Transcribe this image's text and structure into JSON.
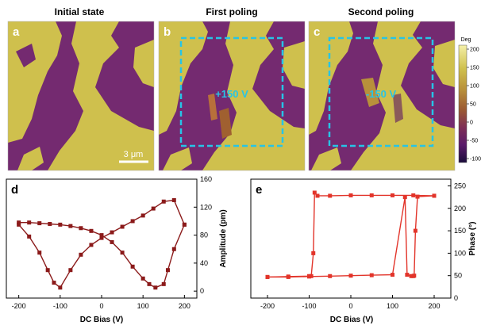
{
  "figure": {
    "panels_top": [
      {
        "letter": "a",
        "title": "Initial state"
      },
      {
        "letter": "b",
        "title": "First poling",
        "box_label": "+150 V"
      },
      {
        "letter": "c",
        "title": "Second poling",
        "box_label": "-150 V"
      }
    ],
    "scale_bar_label": "3 μm",
    "colorbar": {
      "title": "Deg",
      "ticks": [
        "200",
        "150",
        "100",
        "50",
        "0",
        "-50",
        "-100"
      ],
      "stops": [
        "#f4f0a8",
        "#cfc04d",
        "#b8903b",
        "#9b5a33",
        "#7e2f55",
        "#5a1a6a",
        "#1a0c3a"
      ]
    },
    "colors": {
      "yellow_domain": "#cfc04d",
      "purple_domain": "#742a70",
      "poling_box": "#27c4e6",
      "curve_d": "#8b1a1a",
      "curve_e": "#e2342a"
    },
    "panel_d": {
      "letter": "d"
    },
    "panel_e": {
      "letter": "e"
    }
  },
  "chart_data": [
    {
      "type": "line",
      "panel": "d",
      "xlabel": "DC Bias (V)",
      "ylabel": "Amplitude (pm)",
      "xlim": [
        -230,
        230
      ],
      "ylim": [
        -10,
        160
      ],
      "x_ticks": [
        -200,
        -100,
        0,
        100,
        200
      ],
      "y_ticks": [
        0,
        40,
        80,
        120,
        160
      ],
      "grid": false,
      "series": [
        {
          "x": [
            200,
            175,
            150,
            125,
            100,
            75,
            50,
            25,
            0,
            -25,
            -50,
            -75,
            -100,
            -115,
            -130,
            -150,
            -175,
            -200
          ],
          "y": [
            95,
            130,
            128,
            118,
            108,
            100,
            92,
            84,
            76,
            66,
            52,
            30,
            5,
            12,
            30,
            55,
            78,
            95
          ]
        },
        {
          "x": [
            -200,
            -175,
            -150,
            -125,
            -100,
            -75,
            -50,
            -25,
            0,
            25,
            50,
            75,
            100,
            115,
            130,
            150,
            160,
            175,
            200
          ],
          "y": [
            98,
            98,
            97,
            96,
            95,
            93,
            90,
            86,
            80,
            70,
            55,
            35,
            18,
            10,
            5,
            10,
            30,
            60,
            95
          ]
        }
      ]
    },
    {
      "type": "line",
      "panel": "e",
      "xlabel": "DC Bias (V)",
      "ylabel": "Phase (°)",
      "xlim": [
        -240,
        240
      ],
      "ylim": [
        0,
        265
      ],
      "x_ticks": [
        -200,
        -100,
        0,
        100,
        200
      ],
      "y_ticks": [
        0,
        50,
        100,
        150,
        200,
        250
      ],
      "grid": false,
      "series": [
        {
          "x": [
            -200,
            -150,
            -100,
            -95,
            -90,
            -87,
            -80,
            -50,
            0,
            50,
            100,
            150,
            200
          ],
          "y": [
            47,
            48,
            49,
            49,
            100,
            235,
            228,
            228,
            229,
            229,
            229,
            229,
            228
          ]
        },
        {
          "x": [
            200,
            160,
            155,
            152,
            150,
            145,
            135,
            130,
            100,
            50,
            0,
            -50,
            -100,
            -150,
            -200
          ],
          "y": [
            228,
            226,
            150,
            50,
            49,
            49,
            52,
            225,
            52,
            51,
            50,
            49,
            48,
            47,
            47
          ]
        }
      ]
    }
  ]
}
